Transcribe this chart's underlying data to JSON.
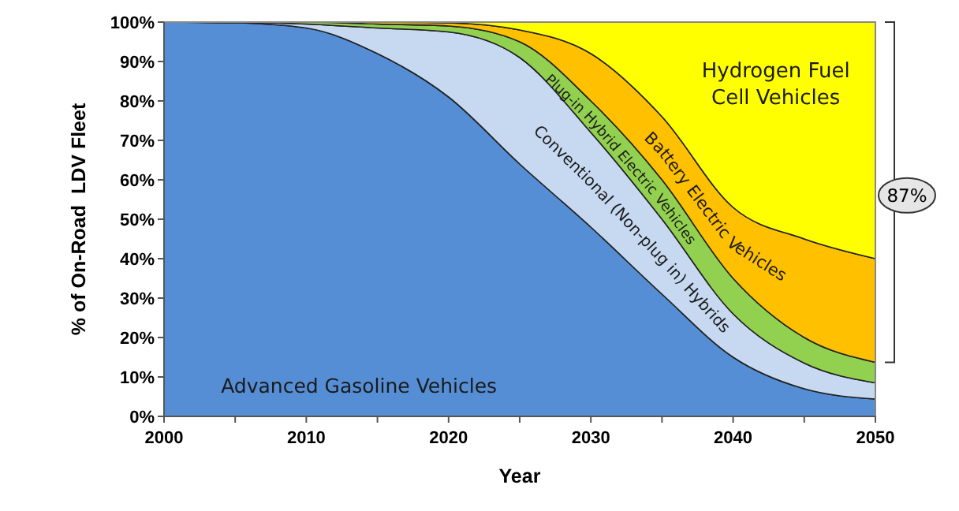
{
  "chart_data": {
    "type": "area",
    "stacked": true,
    "xlabel": "Year",
    "ylabel": "% of On-Road  LDV Fleet",
    "x": [
      2000,
      2005,
      2010,
      2015,
      2020,
      2025,
      2030,
      2035,
      2040,
      2045,
      2050
    ],
    "series": [
      {
        "name": "Advanced Gasoline Vehicles",
        "color": "#558ed5",
        "values": [
          100,
          99.8,
          98.5,
          92,
          81,
          64,
          48,
          31,
          15,
          7,
          4.4
        ]
      },
      {
        "name": "Conventional  (Non-plug in) Hybrids",
        "color": "#c6d9f1",
        "values": [
          0,
          0.2,
          1,
          6.5,
          16.5,
          27,
          24,
          19,
          11,
          6.5,
          4.1
        ]
      },
      {
        "name": "Plug-in Hybrid Electric Vehicles",
        "color": "#92d050",
        "values": [
          0,
          0,
          0.5,
          1,
          1.5,
          4,
          8,
          10,
          9,
          6.5,
          5.2
        ]
      },
      {
        "name": "Battery Electric Vehicles",
        "color": "#ffc000",
        "values": [
          0,
          0,
          0,
          0.5,
          0.8,
          3,
          12,
          16,
          18,
          25,
          26.3
        ]
      },
      {
        "name": "Hydrogen Fuel Cell Vehicles",
        "color": "#ffff00",
        "values": [
          0,
          0,
          0,
          0,
          0.2,
          2,
          8,
          24,
          47,
          55,
          60
        ]
      }
    ],
    "xlim": [
      2000,
      2050
    ],
    "xticks": [
      2000,
      {
        "value": 2005,
        "label": null
      },
      2010,
      {
        "value": 2015,
        "label": null
      },
      2020,
      {
        "value": 2025,
        "label": null
      },
      2030,
      {
        "value": 2035,
        "label": null
      },
      2040,
      {
        "value": 2045,
        "label": null
      },
      2050
    ],
    "ylim": [
      0,
      100
    ],
    "yticks": [
      {
        "value": 0,
        "label": "0%"
      },
      {
        "value": 10,
        "label": "10%"
      },
      {
        "value": 20,
        "label": "20%"
      },
      {
        "value": 30,
        "label": "30%"
      },
      {
        "value": 40,
        "label": "40%"
      },
      {
        "value": 50,
        "label": "50%"
      },
      {
        "value": 60,
        "label": "60%"
      },
      {
        "value": 70,
        "label": "70%"
      },
      {
        "value": 80,
        "label": "80%"
      },
      {
        "value": 90,
        "label": "90%"
      },
      {
        "value": 100,
        "label": "100%"
      }
    ],
    "annotations": [
      "87%"
    ]
  }
}
